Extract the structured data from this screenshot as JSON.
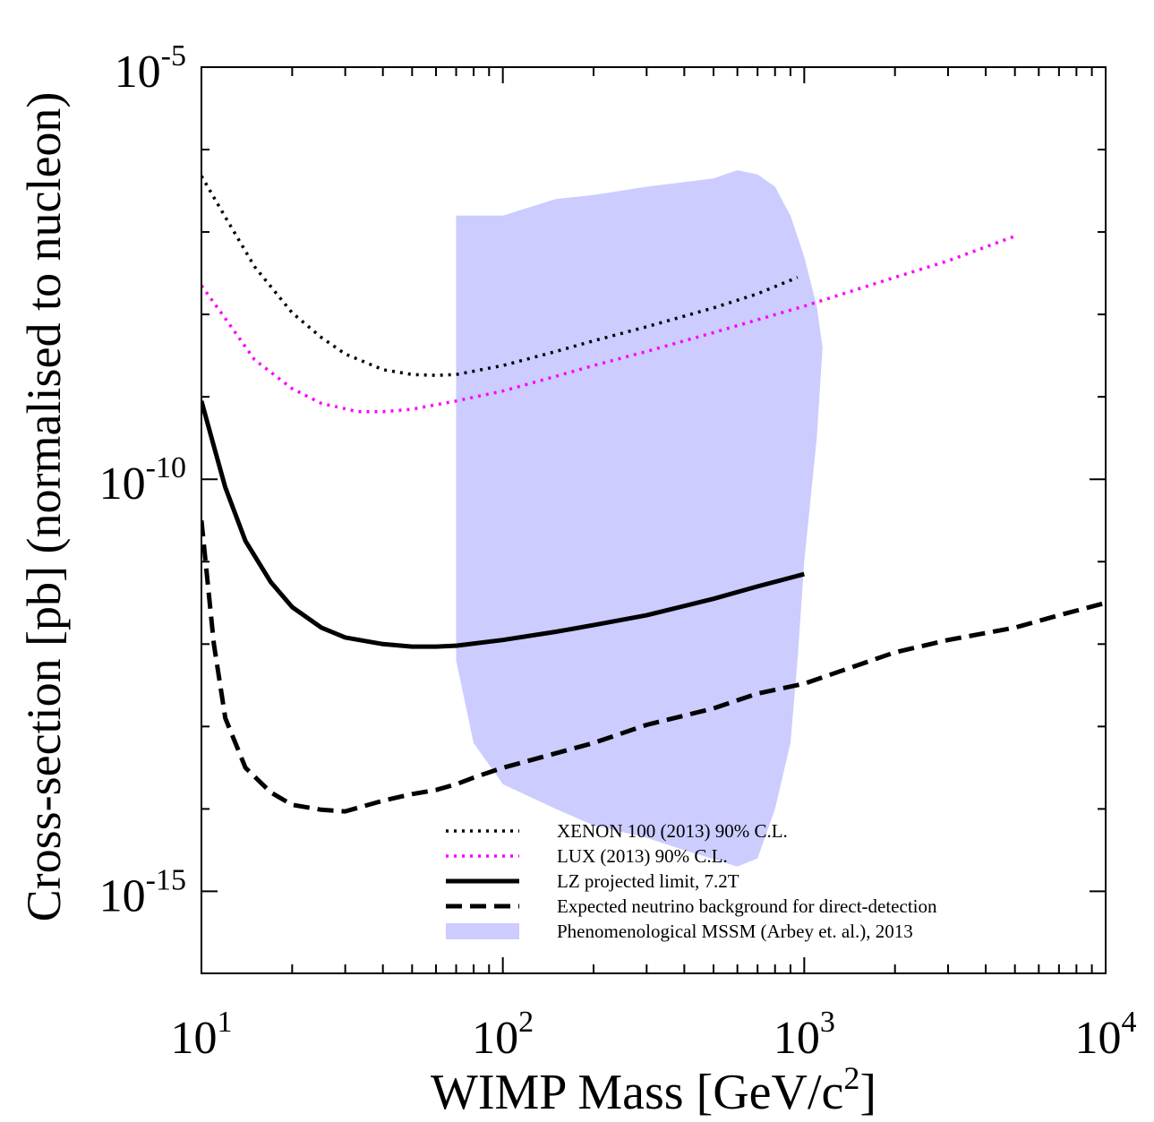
{
  "chart_data": {
    "type": "line",
    "title": "",
    "xlabel": "WIMP Mass [GeV/c",
    "xlabel_sup": "2",
    "xlabel_end": "]",
    "ylabel": "Cross-section [pb] (normalised to nucleon)",
    "x_scale": "log",
    "y_scale": "log",
    "xlim": [
      10,
      10000
    ],
    "ylim_exp": [
      -15.995,
      -5
    ],
    "x_ticks": [
      {
        "base": "10",
        "exp": "1",
        "value": 10
      },
      {
        "base": "10",
        "exp": "2",
        "value": 100
      },
      {
        "base": "10",
        "exp": "3",
        "value": 1000
      },
      {
        "base": "10",
        "exp": "4",
        "value": 10000
      }
    ],
    "y_ticks": [
      {
        "base": "10",
        "exp": "-5",
        "value_exp": -5
      },
      {
        "base": "10",
        "exp": "-10",
        "value_exp": -10
      },
      {
        "base": "10",
        "exp": "-15",
        "value_exp": -15
      }
    ],
    "legend_position": "bottom-center",
    "series": [
      {
        "name": "XENON 100 (2013) 90% C.L.",
        "style": "dotted",
        "color": "#000000",
        "x": [
          10,
          12,
          15,
          20,
          25,
          30,
          40,
          50,
          60,
          70,
          100,
          150,
          200,
          300,
          500,
          700,
          950
        ],
        "y_exp": [
          -6.32,
          -6.82,
          -7.42,
          -7.98,
          -8.28,
          -8.48,
          -8.67,
          -8.73,
          -8.74,
          -8.73,
          -8.62,
          -8.45,
          -8.32,
          -8.15,
          -7.92,
          -7.75,
          -7.55
        ]
      },
      {
        "name": "LUX (2013) 90% C.L.",
        "style": "dotted",
        "color": "#ff00ff",
        "x": [
          10,
          12,
          15,
          20,
          25,
          33,
          40,
          50,
          70,
          100,
          150,
          200,
          300,
          500,
          1000,
          2000,
          3000,
          5000
        ],
        "y_exp": [
          -7.65,
          -8.05,
          -8.55,
          -8.9,
          -9.08,
          -9.18,
          -9.18,
          -9.15,
          -9.05,
          -8.93,
          -8.75,
          -8.62,
          -8.45,
          -8.22,
          -7.9,
          -7.55,
          -7.35,
          -7.05
        ]
      },
      {
        "name": "LZ projected limit, 7.2T",
        "style": "solid",
        "color": "#000000",
        "x": [
          10,
          11,
          12,
          14,
          17,
          20,
          25,
          30,
          40,
          50,
          60,
          70,
          100,
          150,
          200,
          300,
          500,
          700,
          1000
        ],
        "y_exp": [
          -9.05,
          -9.6,
          -10.1,
          -10.75,
          -11.25,
          -11.55,
          -11.8,
          -11.92,
          -12.0,
          -12.03,
          -12.03,
          -12.02,
          -11.95,
          -11.85,
          -11.77,
          -11.65,
          -11.45,
          -11.3,
          -11.15
        ]
      },
      {
        "name": "Expected neutrino background for direct-detection",
        "style": "dashed",
        "color": "#000000",
        "x": [
          10,
          11,
          12,
          14,
          17,
          20,
          25,
          30,
          40,
          50,
          60,
          70,
          80,
          100,
          200,
          300,
          500,
          700,
          1000,
          2000,
          3000,
          5000,
          7000,
          10000
        ],
        "y_exp": [
          -10.5,
          -12.0,
          -12.9,
          -13.5,
          -13.8,
          -13.95,
          -14.01,
          -14.03,
          -13.9,
          -13.82,
          -13.77,
          -13.7,
          -13.62,
          -13.5,
          -13.2,
          -12.98,
          -12.78,
          -12.6,
          -12.48,
          -12.1,
          -11.95,
          -11.8,
          -11.65,
          -11.5
        ]
      }
    ],
    "regions": [
      {
        "name": "Phenomenological MSSM (Arbey et. al.), 2013",
        "color": "#ccccff",
        "upper": {
          "x": [
            70,
            100,
            150,
            200,
            300,
            500,
            600,
            700,
            800,
            900,
            1000,
            1100,
            1150
          ],
          "y_exp": [
            -6.8,
            -6.8,
            -6.6,
            -6.55,
            -6.45,
            -6.35,
            -6.25,
            -6.3,
            -6.45,
            -6.8,
            -7.3,
            -7.9,
            -8.4
          ]
        },
        "lower": {
          "x": [
            1150,
            1100,
            1000,
            950,
            900,
            800,
            700,
            600,
            400,
            300,
            200,
            150,
            100,
            80,
            70
          ],
          "y_exp": [
            -8.4,
            -9.5,
            -11.0,
            -12.2,
            -13.2,
            -14.0,
            -14.6,
            -14.7,
            -14.5,
            -14.35,
            -14.2,
            -14.0,
            -13.7,
            -13.2,
            -12.2
          ]
        }
      }
    ],
    "legend_order": [
      "XENON 100 (2013) 90% C.L.",
      "LUX (2013) 90% C.L.",
      "LZ projected limit, 7.2T",
      "Expected neutrino background for direct-detection",
      "Phenomenological MSSM (Arbey et. al.), 2013"
    ]
  }
}
